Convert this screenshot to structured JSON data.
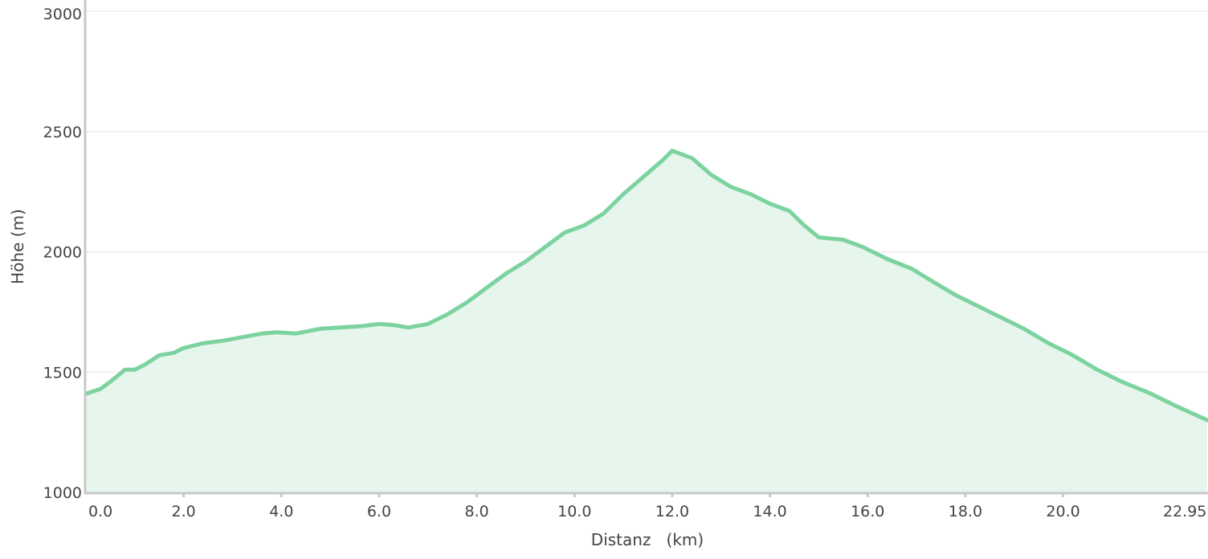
{
  "chart_data": {
    "type": "area",
    "xlabel": "Distanz   (km)",
    "ylabel": "Höhe (m)",
    "xlim": [
      0,
      22.95
    ],
    "ylim": [
      1000,
      3000
    ],
    "x_ticks": [
      {
        "value": 0.0,
        "label": "0.0"
      },
      {
        "value": 2.0,
        "label": "2.0"
      },
      {
        "value": 4.0,
        "label": "4.0"
      },
      {
        "value": 6.0,
        "label": "6.0"
      },
      {
        "value": 8.0,
        "label": "8.0"
      },
      {
        "value": 10.0,
        "label": "10.0"
      },
      {
        "value": 12.0,
        "label": "12.0"
      },
      {
        "value": 14.0,
        "label": "14.0"
      },
      {
        "value": 16.0,
        "label": "16.0"
      },
      {
        "value": 18.0,
        "label": "18.0"
      },
      {
        "value": 20.0,
        "label": "20.0"
      },
      {
        "value": 22.95,
        "label": "22.95"
      }
    ],
    "y_ticks": [
      {
        "value": 1000,
        "label": "1000"
      },
      {
        "value": 1500,
        "label": "1500"
      },
      {
        "value": 2000,
        "label": "2000"
      },
      {
        "value": 2500,
        "label": "2500"
      },
      {
        "value": 3000,
        "label": "3000"
      }
    ],
    "grid": true,
    "colors": {
      "line": "#7dd3a0",
      "fill": "#e3f4ea",
      "grid": "#eeeeee",
      "axis": "#c8c8c8"
    },
    "series": [
      {
        "x": [
          0.0,
          0.3,
          0.5,
          0.8,
          1.0,
          1.2,
          1.5,
          1.8,
          2.0,
          2.4,
          2.8,
          3.2,
          3.6,
          3.9,
          4.3,
          4.8,
          5.2,
          5.6,
          6.0,
          6.3,
          6.6,
          7.0,
          7.4,
          7.8,
          8.2,
          8.6,
          9.0,
          9.4,
          9.8,
          10.2,
          10.6,
          11.0,
          11.4,
          11.8,
          12.0,
          12.4,
          12.8,
          13.2,
          13.6,
          14.0,
          14.4,
          14.7,
          15.0,
          15.5,
          15.9,
          16.4,
          16.9,
          17.3,
          17.8,
          18.3,
          18.8,
          19.2,
          19.7,
          20.2,
          20.7,
          21.2,
          21.8,
          22.3,
          22.95
        ],
        "y": [
          1410,
          1430,
          1460,
          1510,
          1510,
          1530,
          1570,
          1580,
          1600,
          1620,
          1630,
          1645,
          1660,
          1665,
          1660,
          1680,
          1685,
          1690,
          1700,
          1695,
          1685,
          1700,
          1740,
          1790,
          1850,
          1910,
          1960,
          2020,
          2080,
          2110,
          2160,
          2240,
          2310,
          2380,
          2420,
          2390,
          2320,
          2270,
          2240,
          2200,
          2170,
          2110,
          2060,
          2050,
          2020,
          1970,
          1930,
          1880,
          1820,
          1770,
          1720,
          1680,
          1620,
          1570,
          1510,
          1460,
          1410,
          1360,
          1300
        ]
      }
    ]
  }
}
